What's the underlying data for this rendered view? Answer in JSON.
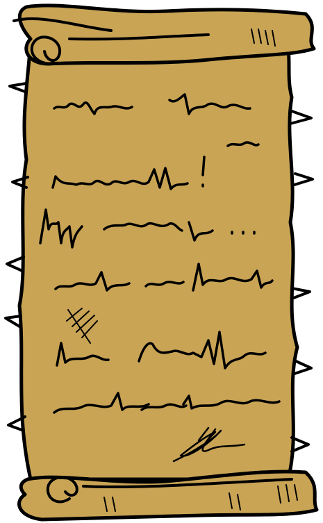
{
  "scroll": {
    "paper_color": "#c9a455",
    "outline_color": "#000000",
    "shadow_color": "#b08b3c"
  },
  "note": {
    "text_lines": [],
    "signature": ""
  }
}
